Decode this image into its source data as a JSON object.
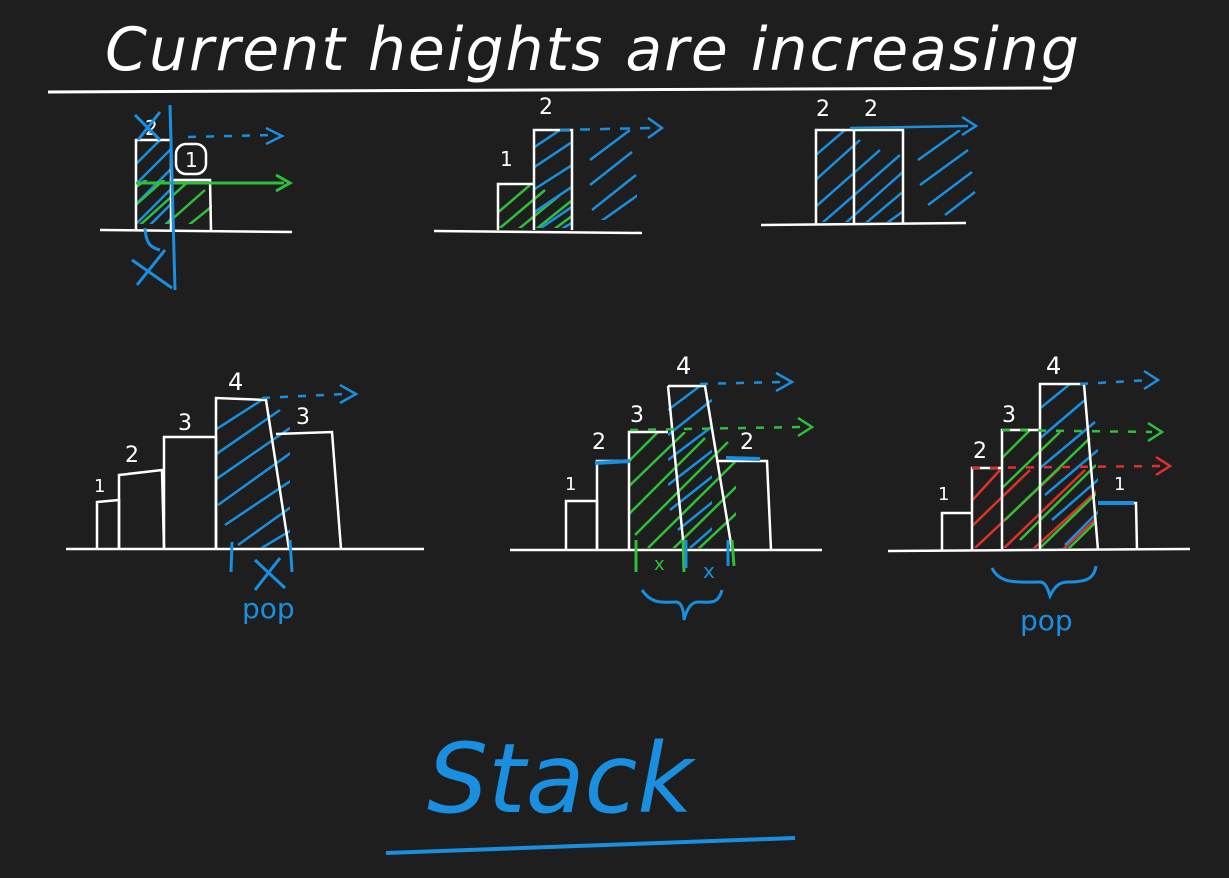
{
  "title": "Current heights are increasing",
  "footer": "Stack",
  "colors": {
    "background": "#1e1e1e",
    "chalk": "#ffffff",
    "blue": "#1a8fe0",
    "green": "#2fbf3a",
    "red": "#e0302a"
  },
  "panels": [
    {
      "id": "p1",
      "bars": [
        {
          "h": 2,
          "label": "2",
          "fill": "blue"
        },
        {
          "h": 1,
          "label": "1",
          "fill": "green",
          "circled": true
        }
      ],
      "arrows": [
        "blue-dotted",
        "green"
      ],
      "marks": [
        "cross-out-first-bar"
      ]
    },
    {
      "id": "p2",
      "bars": [
        {
          "h": 1,
          "label": "1",
          "fill": "green"
        },
        {
          "h": 2,
          "label": "2",
          "fill": "blue"
        }
      ],
      "arrows": [
        "blue-dotted"
      ]
    },
    {
      "id": "p3",
      "bars": [
        {
          "h": 2,
          "label": "2",
          "fill": "blue"
        },
        {
          "h": 2,
          "label": "2",
          "fill": "blue"
        }
      ],
      "arrows": [
        "blue"
      ]
    },
    {
      "id": "p4",
      "bars": [
        {
          "h": 1,
          "label": "1"
        },
        {
          "h": 2,
          "label": "2"
        },
        {
          "h": 3,
          "label": "3"
        },
        {
          "h": 4,
          "label": "4",
          "fill": "blue"
        },
        {
          "h": 3,
          "label": "3"
        }
      ],
      "annotations": [
        "pop"
      ]
    },
    {
      "id": "p5",
      "bars": [
        {
          "h": 1,
          "label": "1"
        },
        {
          "h": 2,
          "label": "2"
        },
        {
          "h": 3,
          "label": "3",
          "fill": "green"
        },
        {
          "h": 4,
          "label": "4",
          "fill": "blue"
        },
        {
          "h": 2,
          "label": "2"
        }
      ],
      "annotations": [
        "x",
        "x"
      ]
    },
    {
      "id": "p6",
      "bars": [
        {
          "h": 1,
          "label": "1"
        },
        {
          "h": 2,
          "label": "2",
          "fill": "red"
        },
        {
          "h": 3,
          "label": "3",
          "fill": "green"
        },
        {
          "h": 4,
          "label": "4",
          "fill": "blue"
        },
        {
          "h": 1,
          "label": "1"
        }
      ],
      "annotations": [
        "pop"
      ]
    }
  ]
}
